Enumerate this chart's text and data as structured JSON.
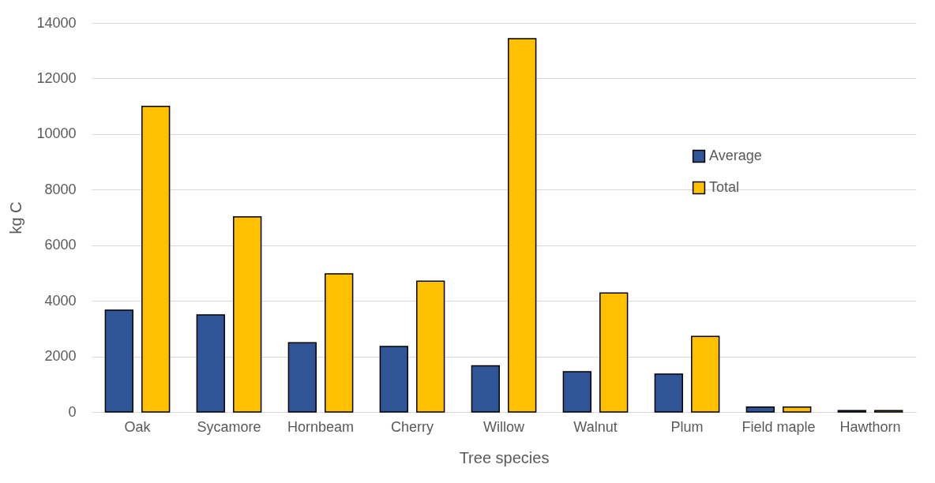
{
  "chart_data": {
    "type": "bar",
    "xlabel": "Tree species",
    "ylabel": "kg C",
    "categories": [
      "Oak",
      "Sycamore",
      "Hornbeam",
      "Cherry",
      "Willow",
      "Walnut",
      "Plum",
      "Field maple",
      "Hawthorn"
    ],
    "series": [
      {
        "name": "Average",
        "color": "#2f5597",
        "values": [
          3660,
          3490,
          2490,
          2360,
          1660,
          1450,
          1360,
          180,
          50
        ]
      },
      {
        "name": "Total",
        "color": "#ffc000",
        "values": [
          11000,
          7020,
          4970,
          4710,
          13430,
          4280,
          2720,
          180,
          50
        ]
      }
    ],
    "ylim": [
      0,
      14000
    ],
    "yticks": [
      0,
      2000,
      4000,
      6000,
      8000,
      10000,
      12000,
      14000
    ],
    "grid": "y",
    "legend": "right"
  }
}
